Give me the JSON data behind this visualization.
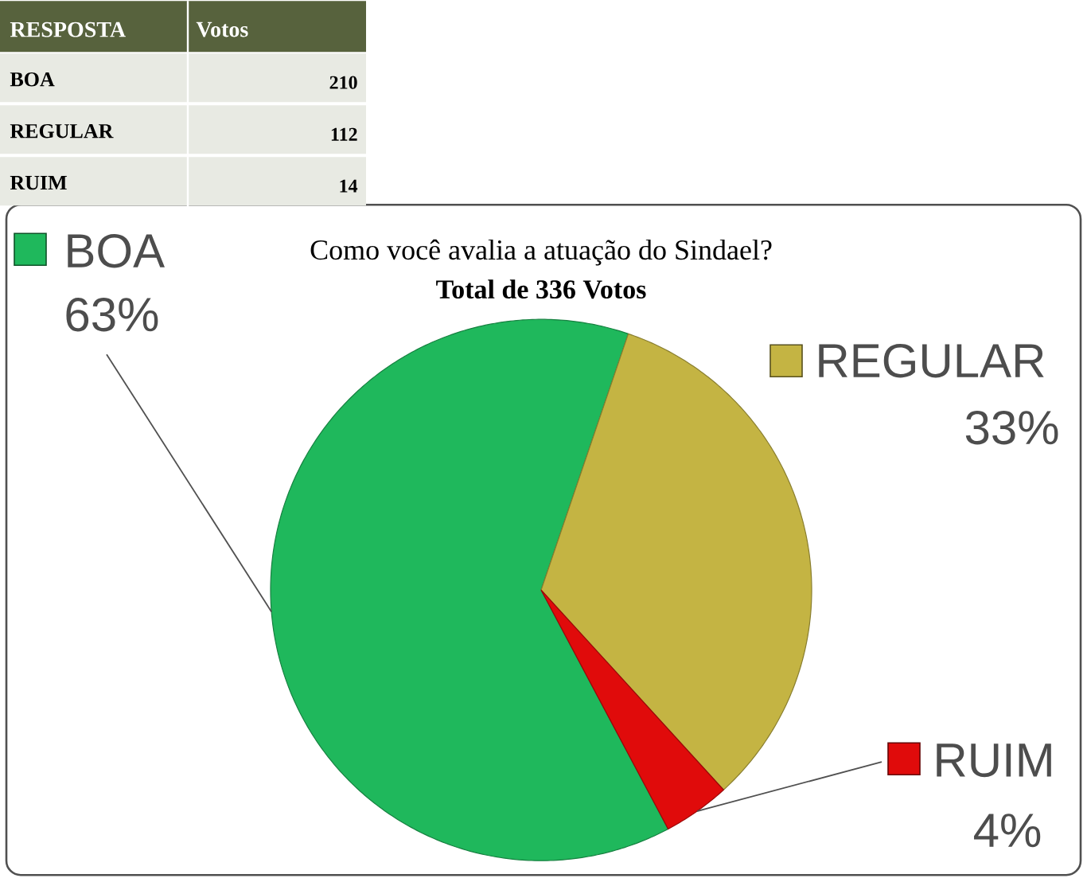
{
  "chart_data": [
    {
      "type": "other",
      "xlabel": "RESPOSTA",
      "ylabel": "Votos",
      "categories": [
        "BOA",
        "REGULAR",
        "RUIM"
      ],
      "values": [
        210,
        112,
        14
      ],
      "data_labels": true
    },
    {
      "type": "pie",
      "title": "Como você avalia a atuação do Sindael?",
      "subtitle": "Total de 336 Votos",
      "categories": [
        "BOA",
        "REGULAR",
        "RUIM"
      ],
      "values": [
        63,
        33,
        4
      ],
      "colors": [
        "#1fb85c",
        "#c4b443",
        "#e00b0b"
      ],
      "value_labels": [
        "63%",
        "33%",
        "4%"
      ],
      "legend": "right"
    }
  ]
}
